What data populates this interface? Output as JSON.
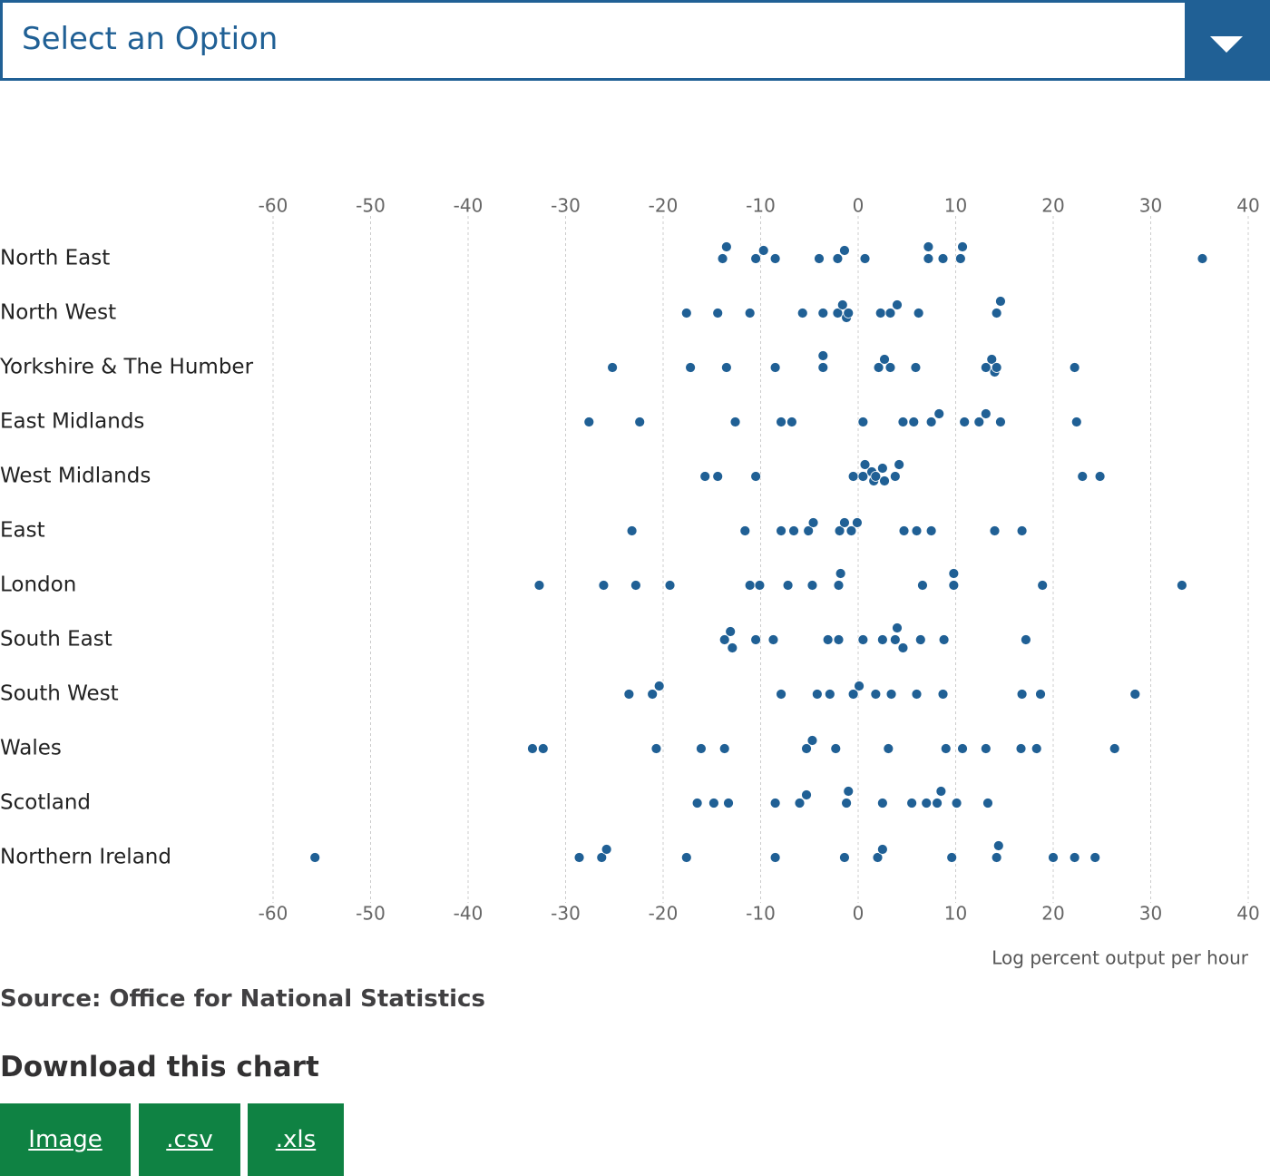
{
  "select": {
    "label": "Select an Option"
  },
  "chart_data": {
    "type": "strip",
    "x_label": "Log percent output per hour",
    "categories": [
      "North East",
      "North West",
      "Yorkshire & The Humber",
      "East Midlands",
      "West Midlands",
      "East",
      "London",
      "South East",
      "South West",
      "Wales",
      "Scotland",
      "Northern Ireland"
    ],
    "values": [
      [
        -13.9,
        -13.5,
        -10.5,
        -9.7,
        -8.5,
        -4.0,
        -2.1,
        -1.4,
        0.7,
        7.2,
        7.2,
        8.7,
        10.5,
        10.7,
        35.3
      ],
      [
        -17.6,
        -14.4,
        -11.1,
        -5.7,
        -3.6,
        -2.1,
        -1.6,
        -1.2,
        -1.0,
        2.3,
        3.3,
        4.0,
        6.2,
        14.2,
        14.6
      ],
      [
        -25.2,
        -17.2,
        -13.5,
        -8.5,
        -3.6,
        -3.6,
        2.1,
        2.7,
        3.3,
        5.9,
        13.1,
        13.7,
        14.0,
        14.2,
        22.2
      ],
      [
        -27.6,
        -22.4,
        -12.6,
        -7.9,
        -6.8,
        0.5,
        4.6,
        5.7,
        7.5,
        8.3,
        10.9,
        12.4,
        13.1,
        14.6,
        22.4
      ],
      [
        -15.7,
        -14.4,
        -10.5,
        -0.5,
        0.5,
        0.7,
        1.4,
        1.6,
        1.8,
        2.5,
        2.7,
        3.8,
        4.2,
        23.0,
        24.8
      ],
      [
        -23.2,
        -11.6,
        -7.9,
        -6.6,
        -5.1,
        -4.6,
        -1.9,
        -1.4,
        -0.7,
        -0.1,
        4.7,
        6.0,
        7.5,
        14.0,
        16.8
      ],
      [
        -32.7,
        -26.1,
        -22.8,
        -19.3,
        -11.1,
        -10.1,
        -7.2,
        -4.7,
        -2.0,
        -1.8,
        6.6,
        9.8,
        9.8,
        18.9,
        33.2
      ],
      [
        -13.7,
        -13.1,
        -12.9,
        -10.5,
        -8.7,
        -3.1,
        -2.0,
        0.5,
        2.5,
        3.8,
        4.0,
        4.6,
        6.4,
        8.8,
        17.2
      ],
      [
        -23.5,
        -21.1,
        -20.4,
        -7.9,
        -4.2,
        -2.9,
        -0.5,
        0.1,
        1.8,
        3.4,
        6.0,
        8.7,
        16.8,
        18.7,
        28.4
      ],
      [
        -33.4,
        -32.3,
        -20.7,
        -16.1,
        -13.7,
        -5.3,
        -4.7,
        -2.3,
        3.1,
        9.0,
        10.7,
        13.1,
        16.7,
        18.3,
        26.3
      ],
      [
        -16.5,
        -14.8,
        -13.3,
        -8.5,
        -6.0,
        -5.3,
        -1.2,
        -1.0,
        2.5,
        5.5,
        7.0,
        8.1,
        8.5,
        10.1,
        13.3
      ],
      [
        -55.7,
        -28.6,
        -26.3,
        -25.8,
        -17.6,
        -8.5,
        -1.4,
        2.0,
        2.5,
        9.6,
        14.2,
        14.4,
        20.0,
        22.2,
        24.3
      ]
    ],
    "color": "#206095",
    "xlim": [
      -60,
      40
    ],
    "xticks": [
      -60,
      -50,
      -40,
      -30,
      -20,
      -10,
      0,
      10,
      20,
      30,
      40
    ],
    "grid": true
  },
  "source": "Source: Office for National Statistics",
  "download": {
    "title": "Download this chart",
    "buttons": [
      "Image",
      ".csv",
      ".xls"
    ]
  }
}
